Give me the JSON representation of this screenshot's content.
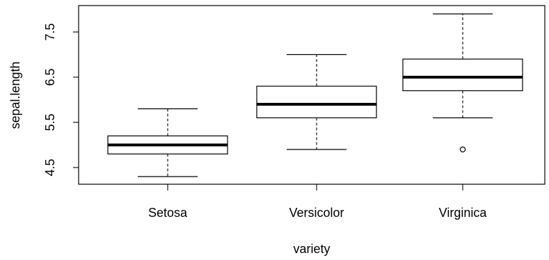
{
  "chart_data": {
    "type": "boxplot",
    "title": "",
    "xlabel": "variety",
    "ylabel": "sepal.length",
    "ylim": [
      4.2,
      8.0
    ],
    "yticks": [
      4.5,
      5.5,
      6.5,
      7.5
    ],
    "ytick_labels": [
      "4.5",
      "5.5",
      "6.5",
      "7.5"
    ],
    "grid": false,
    "categories": [
      "Setosa",
      "Versicolor",
      "Virginica"
    ],
    "boxes": [
      {
        "category": "Setosa",
        "whisker_low": 4.3,
        "q1": 4.8,
        "median": 5.0,
        "q3": 5.2,
        "whisker_high": 5.8,
        "outliers": []
      },
      {
        "category": "Versicolor",
        "whisker_low": 4.9,
        "q1": 5.6,
        "median": 5.9,
        "q3": 6.3,
        "whisker_high": 7.0,
        "outliers": []
      },
      {
        "category": "Virginica",
        "whisker_low": 5.6,
        "q1": 6.2,
        "median": 6.5,
        "q3": 6.9,
        "whisker_high": 7.9,
        "outliers": [
          4.9
        ]
      }
    ]
  }
}
